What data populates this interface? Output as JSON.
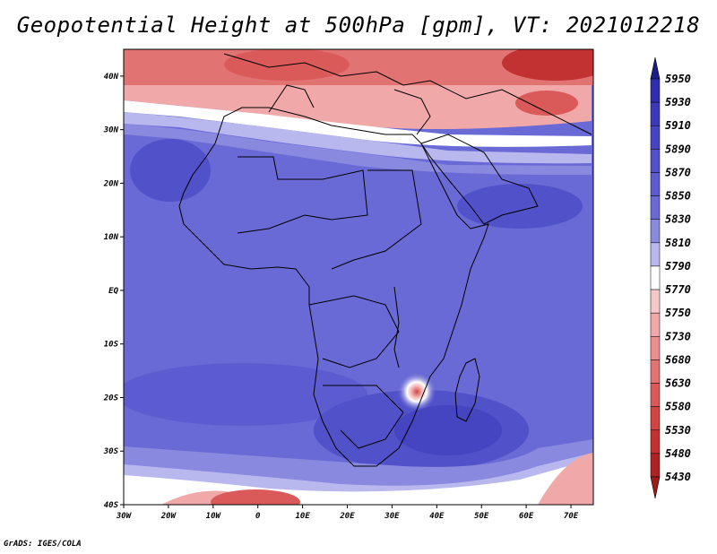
{
  "title": "Geopotential Height at 500hPa [gpm], VT: 2021012218",
  "footer": "GrADS: IGES/COLA",
  "map": {
    "projection": "latlon",
    "lon_range": [
      -30,
      75
    ],
    "lat_range": [
      -40,
      45
    ],
    "lon_ticks": [
      {
        "value": -30,
        "label": "30W"
      },
      {
        "value": -20,
        "label": "20W"
      },
      {
        "value": -10,
        "label": "10W"
      },
      {
        "value": 0,
        "label": "0"
      },
      {
        "value": 10,
        "label": "10E"
      },
      {
        "value": 20,
        "label": "20E"
      },
      {
        "value": 30,
        "label": "30E"
      },
      {
        "value": 40,
        "label": "40E"
      },
      {
        "value": 50,
        "label": "50E"
      },
      {
        "value": 60,
        "label": "60E"
      },
      {
        "value": 70,
        "label": "70E"
      }
    ],
    "lat_ticks": [
      {
        "value": 40,
        "label": "40N"
      },
      {
        "value": 30,
        "label": "30N"
      },
      {
        "value": 20,
        "label": "20N"
      },
      {
        "value": 10,
        "label": "10N"
      },
      {
        "value": 0,
        "label": "EQ"
      },
      {
        "value": -10,
        "label": "10S"
      },
      {
        "value": -20,
        "label": "20S"
      },
      {
        "value": -30,
        "label": "30S"
      },
      {
        "value": -40,
        "label": "40S"
      }
    ],
    "features": {
      "continents": [
        "Africa",
        "Europe",
        "Middle East",
        "Madagascar",
        "Arabian Peninsula"
      ],
      "local_low": "Mozambique Channel (~35E, 19S)"
    }
  },
  "colorbar": {
    "levels": [
      {
        "value": "5950",
        "color": "#23239b"
      },
      {
        "value": "5930",
        "color": "#2f2fae"
      },
      {
        "value": "5910",
        "color": "#3a3ab9"
      },
      {
        "value": "5890",
        "color": "#4545c2"
      },
      {
        "value": "5870",
        "color": "#5151c9"
      },
      {
        "value": "5850",
        "color": "#5c5cd0"
      },
      {
        "value": "5830",
        "color": "#6a6ad6"
      },
      {
        "value": "5810",
        "color": "#8989e0"
      },
      {
        "value": "5790",
        "color": "#b8b8ef"
      },
      {
        "value": "5770",
        "color": "#ffffff"
      },
      {
        "value": "5750",
        "color": "#f6c9c9"
      },
      {
        "value": "5730",
        "color": "#f0a8a8"
      },
      {
        "value": "5680",
        "color": "#ea8f8f"
      },
      {
        "value": "5630",
        "color": "#e27373"
      },
      {
        "value": "5580",
        "color": "#da5a5a"
      },
      {
        "value": "5530",
        "color": "#d04444"
      },
      {
        "value": "5480",
        "color": "#c23232"
      },
      {
        "value": "5430",
        "color": "#ad2222"
      }
    ],
    "top_arrow_color": "#1c1c8a",
    "bottom_arrow_color": "#9c1a1a"
  }
}
